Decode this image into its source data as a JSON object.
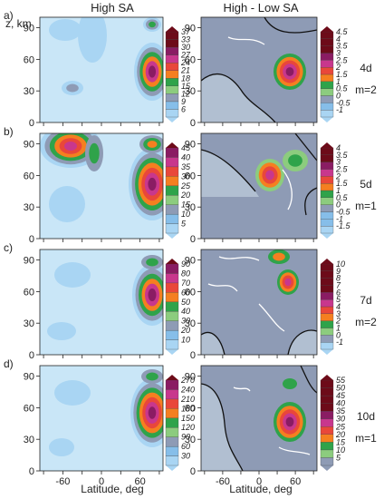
{
  "columns": {
    "left": "High SA",
    "right": "High - Low SA"
  },
  "yaxis_label": "z, km",
  "xaxis_label": "Latitude, deg",
  "yticks": [
    "0",
    "30",
    "60",
    "90"
  ],
  "xticks": [
    "-60",
    "0",
    "60"
  ],
  "colors": {
    "bg": "#c9e6f7",
    "blue1": "#a9d5f3",
    "blue2": "#86bee9",
    "gray": "#8e9bb5",
    "green_light": "#8ccc7e",
    "green": "#2fa34a",
    "orange": "#f57f20",
    "red_orange": "#e9473a",
    "magenta": "#c8378d",
    "purple": "#8a1c63",
    "darkred": "#6d0b19"
  },
  "chart_data": [
    {
      "type": "heatmap",
      "panel": "a)",
      "period": "4d",
      "mode": "m=2",
      "left": {
        "colorbar": [
          "6",
          "9",
          "12",
          "15",
          "18",
          "21",
          "24",
          "27",
          "30",
          "33",
          "37"
        ]
      },
      "right": {
        "colorbar": [
          "-1",
          "-0.5",
          "0",
          "0.5",
          "1",
          "1.5",
          "2",
          "2.5",
          "3",
          "3.5",
          "4",
          "4.5"
        ]
      }
    },
    {
      "type": "heatmap",
      "panel": "b)",
      "period": "5d",
      "mode": "m=1",
      "left": {
        "colorbar": [
          "5",
          "10",
          "15",
          "20",
          "25",
          "30",
          "35",
          "40",
          "45"
        ]
      },
      "right": {
        "colorbar": [
          "-1.5",
          "-1",
          "-0.5",
          "0",
          "0.5",
          "1",
          "1.5",
          "2",
          "2.5",
          "3",
          "3.5",
          "4"
        ]
      }
    },
    {
      "type": "heatmap",
      "panel": "c)",
      "period": "7d",
      "mode": "m=2",
      "left": {
        "colorbar": [
          "10",
          "20",
          "30",
          "40",
          "50",
          "60",
          "70",
          "80",
          "90"
        ]
      },
      "right": {
        "colorbar": [
          "-1",
          "0",
          "1",
          "2",
          "3",
          "4",
          "5",
          "6",
          "7",
          "8",
          "9",
          "10"
        ]
      }
    },
    {
      "type": "heatmap",
      "panel": "d)",
      "period": "10d",
      "mode": "m=1",
      "left": {
        "colorbar": [
          "30",
          "60",
          "90",
          "120",
          "150",
          "180",
          "210",
          "240",
          "270"
        ]
      },
      "right": {
        "colorbar": [
          "5",
          "10",
          "15",
          "20",
          "25",
          "30",
          "35",
          "40",
          "45",
          "50",
          "55"
        ]
      }
    }
  ]
}
